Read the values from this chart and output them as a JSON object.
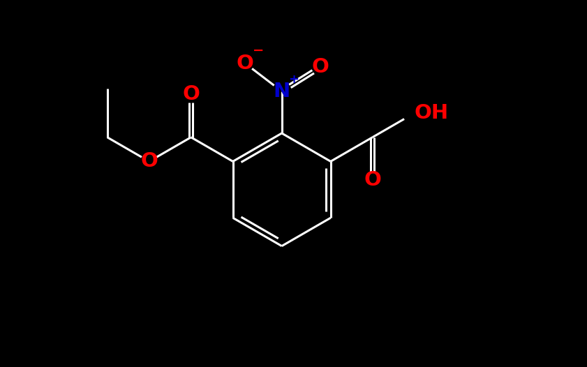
{
  "bg_color": "#000000",
  "bond_color": "#ffffff",
  "bond_width": 2.2,
  "colors": {
    "C": "#ffffff",
    "O": "#ff0000",
    "N": "#0000cd",
    "H": "#ffffff"
  },
  "figsize": [
    8.41,
    5.26
  ],
  "dpi": 100
}
